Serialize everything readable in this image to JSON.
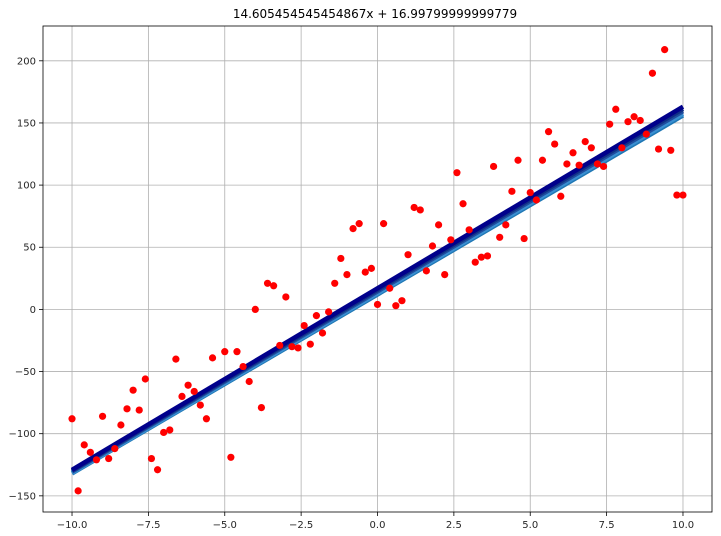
{
  "chart_data": {
    "type": "scatter",
    "title": "14.605454545454867x + 16.99799999999779",
    "xlabel": "",
    "ylabel": "",
    "xlim": [
      -10.95,
      10.95
    ],
    "ylim": [
      -163,
      228
    ],
    "xticks": [
      -10.0,
      -7.5,
      -5.0,
      -2.5,
      0.0,
      2.5,
      5.0,
      7.5,
      10.0
    ],
    "xtick_labels": [
      "−10.0",
      "−7.5",
      "−5.0",
      "−2.5",
      "0.0",
      "2.5",
      "5.0",
      "7.5",
      "10.0"
    ],
    "yticks": [
      -150,
      -100,
      -50,
      0,
      50,
      100,
      150,
      200
    ],
    "ytick_labels": [
      "−150",
      "−100",
      "−50",
      "0",
      "50",
      "100",
      "150",
      "200"
    ],
    "grid": true,
    "point_color": "#ff0000",
    "points": {
      "x": [
        -10.0,
        -9.8,
        -9.6,
        -9.4,
        -9.2,
        -9.0,
        -8.8,
        -8.6,
        -8.4,
        -8.2,
        -8.0,
        -7.8,
        -7.6,
        -7.4,
        -7.2,
        -7.0,
        -6.8,
        -6.6,
        -6.4,
        -6.2,
        -6.0,
        -5.8,
        -5.6,
        -5.4,
        -5.0,
        -4.8,
        -4.6,
        -4.4,
        -4.2,
        -4.0,
        -3.8,
        -3.6,
        -3.4,
        -3.2,
        -3.0,
        -2.8,
        -2.6,
        -2.4,
        -2.2,
        -2.0,
        -1.8,
        -1.6,
        -1.4,
        -1.2,
        -1.0,
        -0.8,
        -0.6,
        -0.4,
        -0.2,
        0.0,
        0.2,
        0.4,
        0.6,
        0.8,
        1.0,
        1.2,
        1.4,
        1.6,
        1.8,
        2.0,
        2.2,
        2.4,
        2.6,
        2.8,
        3.0,
        3.2,
        3.4,
        3.6,
        3.8,
        4.0,
        4.2,
        4.4,
        4.6,
        4.8,
        5.0,
        5.2,
        5.4,
        5.6,
        5.8,
        6.0,
        6.2,
        6.4,
        6.6,
        6.8,
        7.0,
        7.2,
        7.4,
        7.6,
        7.8,
        8.0,
        8.2,
        8.4,
        8.6,
        8.8,
        9.0,
        9.2,
        9.4,
        9.6,
        9.8,
        10.0
      ],
      "y": [
        -88,
        -146,
        -109,
        -115,
        -121,
        -86,
        -120,
        -112,
        -93,
        -80,
        -65,
        -81,
        -56,
        -120,
        -129,
        -99,
        -97,
        -40,
        -70,
        -61,
        -66,
        -77,
        -88,
        -39,
        -34,
        -119,
        -34,
        -46,
        -58,
        0,
        -79,
        21,
        19,
        -29,
        10,
        -30,
        -31,
        -13,
        -28,
        -5,
        -19,
        -2,
        21,
        41,
        28,
        65,
        69,
        30,
        33,
        4,
        69,
        17,
        3,
        7,
        44,
        82,
        80,
        31,
        51,
        68,
        28,
        56,
        110,
        85,
        64,
        38,
        42,
        43,
        115,
        58,
        68,
        95,
        120,
        57,
        94,
        88,
        120,
        143,
        133,
        91,
        117,
        126,
        116,
        135,
        130,
        117,
        115,
        149,
        161,
        130,
        151,
        155,
        152,
        141,
        190,
        129,
        209,
        128,
        92,
        92
      ]
    },
    "fit_lines": [
      {
        "color": "#1f77b4",
        "slope": 14.4,
        "intercept": 12.0
      },
      {
        "color": "#3a8fd1",
        "slope": 14.45,
        "intercept": 13.0
      },
      {
        "color": "#1f4e9e",
        "slope": 14.5,
        "intercept": 14.5
      },
      {
        "color": "#102f86",
        "slope": 14.55,
        "intercept": 15.8
      },
      {
        "color": "#00008b",
        "slope": 14.605454545454867,
        "intercept": 16.99799999999779
      }
    ]
  }
}
